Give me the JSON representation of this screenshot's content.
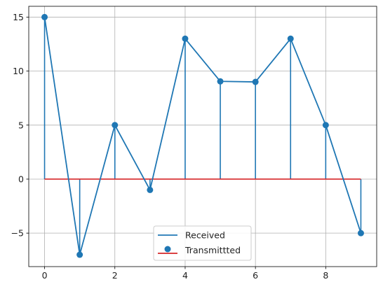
{
  "chart_data": {
    "type": "line",
    "title": "",
    "xlabel": "",
    "ylabel": "",
    "x": [
      0,
      1,
      2,
      3,
      4,
      5,
      6,
      7,
      8,
      9
    ],
    "xlim": [
      -0.45,
      9.45
    ],
    "ylim": [
      -8.1,
      16.0
    ],
    "xticks": [
      0,
      2,
      4,
      6,
      8
    ],
    "yticks": [
      -5,
      0,
      5,
      10,
      15
    ],
    "grid": true,
    "legend_position": "lower center",
    "series": [
      {
        "name": "Received",
        "style": "line",
        "color": "#1f77b4",
        "values": [
          15,
          -7,
          5,
          -1,
          13,
          9.05,
          9.0,
          13,
          5,
          -5
        ]
      },
      {
        "name": "Transmittted",
        "style": "stem",
        "color": "#1f77b4",
        "baseline_color": "#d62728",
        "baseline": 0,
        "values": [
          15,
          -7,
          5,
          -1,
          13,
          9.05,
          9.0,
          13,
          5,
          -5
        ]
      }
    ]
  },
  "legend": {
    "items": [
      {
        "label": "Received"
      },
      {
        "label": "Transmittted"
      }
    ]
  }
}
